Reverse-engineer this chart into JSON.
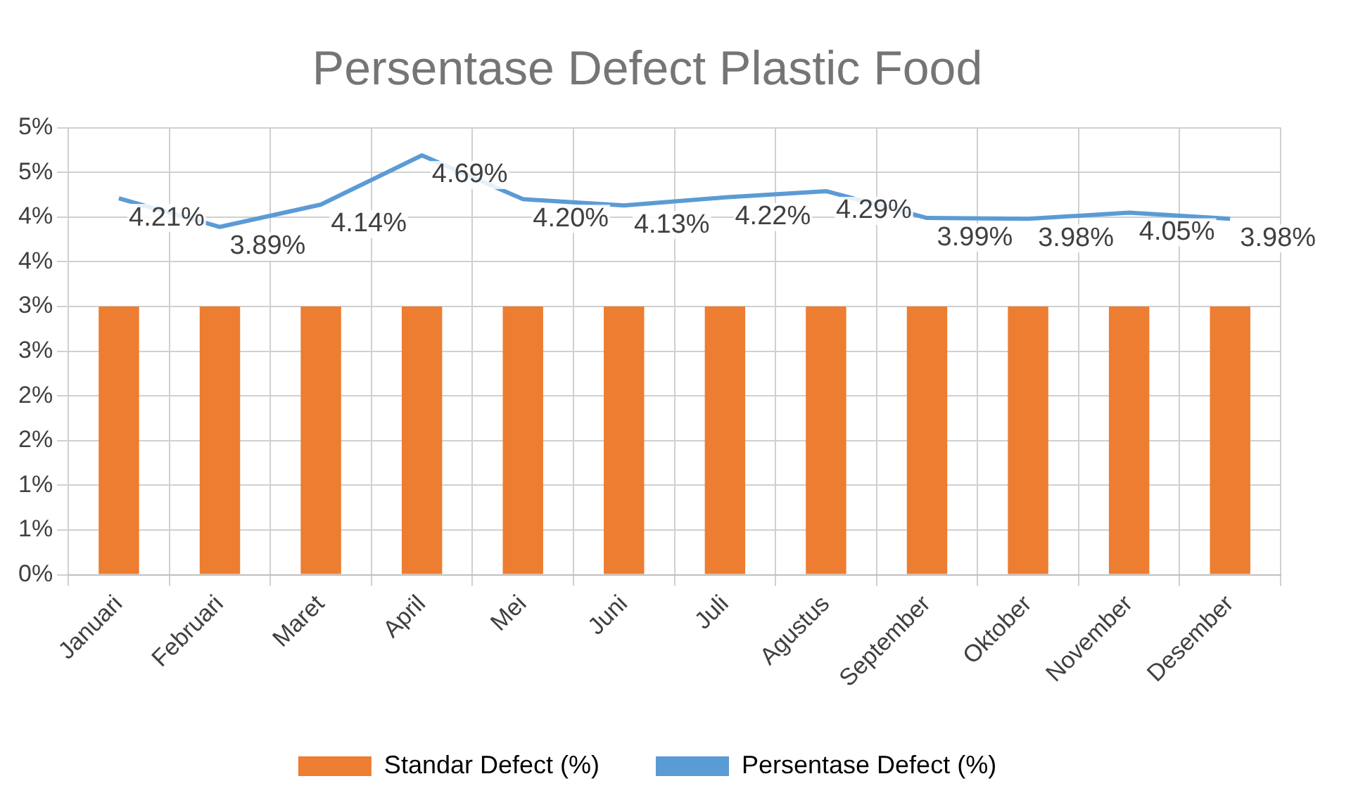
{
  "chart_data": {
    "type": "bar",
    "title": "Persentase Defect Plastic Food",
    "categories": [
      "Januari",
      "Februari",
      "Maret",
      "April",
      "Mei",
      "Juni",
      "Juli",
      "Agustus",
      "September",
      "Oktober",
      "November",
      "Desember"
    ],
    "series": [
      {
        "name": "Standar Defect (%)",
        "color": "#ed7d31",
        "values": [
          3,
          3,
          3,
          3,
          3,
          3,
          3,
          3,
          3,
          3,
          3,
          3
        ]
      },
      {
        "name": "Persentase Defect (%)",
        "type": "line",
        "color": "#5b9bd5",
        "values": [
          4.21,
          3.89,
          4.14,
          4.69,
          4.2,
          4.13,
          4.22,
          4.29,
          3.99,
          3.98,
          4.05,
          3.98
        ],
        "value_labels": [
          "4.21%",
          "3.89%",
          "4.14%",
          "4.69%",
          "4.20%",
          "4.13%",
          "4.22%",
          "4.29%",
          "3.99%",
          "3.98%",
          "4.05%",
          "3.98%"
        ]
      }
    ],
    "ylim": [
      0,
      5
    ],
    "yticks": [
      {
        "value": 0,
        "label": "0%"
      },
      {
        "value": 0.5,
        "label": "1%"
      },
      {
        "value": 1,
        "label": "1%"
      },
      {
        "value": 1.5,
        "label": "2%"
      },
      {
        "value": 2,
        "label": "2%"
      },
      {
        "value": 2.5,
        "label": "3%"
      },
      {
        "value": 3,
        "label": "3%"
      },
      {
        "value": 3.5,
        "label": "4%"
      },
      {
        "value": 4,
        "label": "4%"
      },
      {
        "value": 4.5,
        "label": "5%"
      },
      {
        "value": 5,
        "label": "5%"
      }
    ],
    "grid": true,
    "legend": "bottom",
    "marker": "none",
    "line_style": "solid"
  }
}
